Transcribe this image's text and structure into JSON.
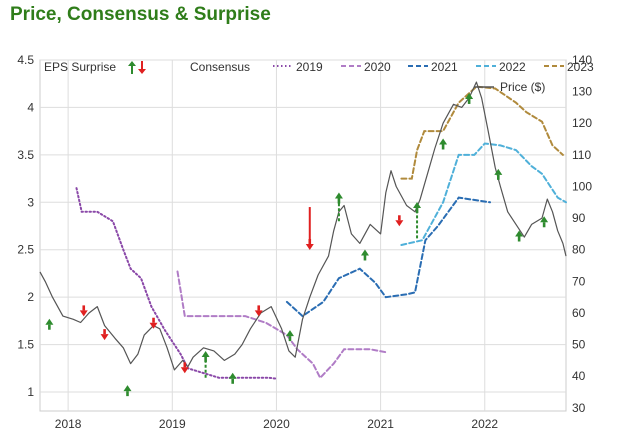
{
  "title": "Price, Consensus & Surprise",
  "chart_data": {
    "type": "line",
    "legend": {
      "surprise_label": "EPS Surprise",
      "consensus_label": "Consensus",
      "price_label": "Price ($)",
      "placement": "top"
    },
    "x_ticks": [
      "2018",
      "2019",
      "2020",
      "2021",
      "2022"
    ],
    "x_range": [
      2017.73,
      2022.78
    ],
    "left_axis": {
      "ticks": [
        "1",
        "1.5",
        "2",
        "2.5",
        "3",
        "3.5",
        "4",
        "4.5"
      ],
      "range": [
        0.8,
        4.5
      ]
    },
    "right_axis": {
      "ticks": [
        "30",
        "40",
        "50",
        "60",
        "70",
        "80",
        "90",
        "100",
        "110",
        "120",
        "130",
        "140"
      ],
      "range": [
        29,
        140
      ]
    },
    "grid": true,
    "series": [
      {
        "name": "2019",
        "style": "dotted",
        "color": "#8a48a8",
        "points": [
          [
            2018.08,
            3.15
          ],
          [
            2018.13,
            2.9
          ],
          [
            2018.28,
            2.9
          ],
          [
            2018.43,
            2.8
          ],
          [
            2018.53,
            2.5
          ],
          [
            2018.6,
            2.3
          ],
          [
            2018.7,
            2.2
          ],
          [
            2018.8,
            1.9
          ],
          [
            2018.93,
            1.65
          ],
          [
            2019.08,
            1.4
          ],
          [
            2019.15,
            1.25
          ],
          [
            2019.3,
            1.2
          ],
          [
            2019.45,
            1.15
          ],
          [
            2019.6,
            1.15
          ],
          [
            2019.75,
            1.15
          ],
          [
            2019.93,
            1.15
          ],
          [
            2020.0,
            1.14
          ]
        ]
      },
      {
        "name": "2020",
        "style": "dashed",
        "color": "#b07cc6",
        "points": [
          [
            2019.05,
            2.27
          ],
          [
            2019.12,
            1.8
          ],
          [
            2019.7,
            1.8
          ],
          [
            2019.9,
            1.73
          ],
          [
            2020.1,
            1.6
          ],
          [
            2020.2,
            1.45
          ],
          [
            2020.35,
            1.3
          ],
          [
            2020.42,
            1.15
          ],
          [
            2020.55,
            1.3
          ],
          [
            2020.65,
            1.45
          ],
          [
            2020.9,
            1.45
          ],
          [
            2021.05,
            1.42
          ]
        ]
      },
      {
        "name": "2021",
        "style": "dashed",
        "color": "#2a6db3",
        "points": [
          [
            2020.1,
            1.95
          ],
          [
            2020.25,
            1.8
          ],
          [
            2020.45,
            1.95
          ],
          [
            2020.6,
            2.2
          ],
          [
            2020.8,
            2.3
          ],
          [
            2020.95,
            2.15
          ],
          [
            2021.05,
            2.0
          ],
          [
            2021.25,
            2.03
          ],
          [
            2021.33,
            2.05
          ],
          [
            2021.43,
            2.6
          ],
          [
            2021.55,
            2.75
          ],
          [
            2021.75,
            3.05
          ],
          [
            2022.05,
            3.0
          ]
        ]
      },
      {
        "name": "2022",
        "style": "dashed",
        "color": "#4fb0d9",
        "points": [
          [
            2021.2,
            2.55
          ],
          [
            2021.4,
            2.6
          ],
          [
            2021.5,
            2.8
          ],
          [
            2021.6,
            3.0
          ],
          [
            2021.75,
            3.5
          ],
          [
            2021.9,
            3.5
          ],
          [
            2022.0,
            3.62
          ],
          [
            2022.15,
            3.6
          ],
          [
            2022.3,
            3.55
          ],
          [
            2022.45,
            3.38
          ],
          [
            2022.55,
            3.3
          ],
          [
            2022.7,
            3.05
          ],
          [
            2022.78,
            3.0
          ]
        ]
      },
      {
        "name": "2023",
        "style": "dashed",
        "color": "#b08a3c",
        "points": [
          [
            2021.2,
            3.25
          ],
          [
            2021.3,
            3.25
          ],
          [
            2021.35,
            3.55
          ],
          [
            2021.42,
            3.75
          ],
          [
            2021.6,
            3.75
          ],
          [
            2021.75,
            4.05
          ],
          [
            2021.92,
            4.22
          ],
          [
            2022.1,
            4.2
          ],
          [
            2022.3,
            4.05
          ],
          [
            2022.4,
            3.95
          ],
          [
            2022.55,
            3.85
          ],
          [
            2022.65,
            3.6
          ],
          [
            2022.75,
            3.5
          ]
        ]
      }
    ],
    "price": {
      "color": "#555555",
      "points": [
        [
          2017.73,
          73
        ],
        [
          2017.78,
          70
        ],
        [
          2017.85,
          65
        ],
        [
          2017.95,
          59
        ],
        [
          2018.05,
          58
        ],
        [
          2018.12,
          57
        ],
        [
          2018.2,
          60
        ],
        [
          2018.28,
          62
        ],
        [
          2018.35,
          56
        ],
        [
          2018.45,
          52
        ],
        [
          2018.53,
          49
        ],
        [
          2018.6,
          44
        ],
        [
          2018.67,
          47
        ],
        [
          2018.73,
          53
        ],
        [
          2018.82,
          56
        ],
        [
          2018.88,
          55
        ],
        [
          2018.95,
          49
        ],
        [
          2019.02,
          42
        ],
        [
          2019.1,
          45
        ],
        [
          2019.15,
          43
        ],
        [
          2019.2,
          46
        ],
        [
          2019.3,
          49
        ],
        [
          2019.4,
          48
        ],
        [
          2019.5,
          45
        ],
        [
          2019.6,
          47
        ],
        [
          2019.67,
          50
        ],
        [
          2019.75,
          55
        ],
        [
          2019.85,
          60
        ],
        [
          2019.95,
          62
        ],
        [
          2020.05,
          55
        ],
        [
          2020.12,
          48
        ],
        [
          2020.18,
          46
        ],
        [
          2020.25,
          58
        ],
        [
          2020.32,
          65
        ],
        [
          2020.4,
          72
        ],
        [
          2020.5,
          78
        ],
        [
          2020.55,
          86
        ],
        [
          2020.6,
          92
        ],
        [
          2020.65,
          94
        ],
        [
          2020.72,
          85
        ],
        [
          2020.8,
          82
        ],
        [
          2020.9,
          88
        ],
        [
          2021.0,
          85
        ],
        [
          2021.05,
          98
        ],
        [
          2021.1,
          105
        ],
        [
          2021.15,
          100
        ],
        [
          2021.25,
          94
        ],
        [
          2021.33,
          92
        ],
        [
          2021.38,
          96
        ],
        [
          2021.45,
          104
        ],
        [
          2021.52,
          112
        ],
        [
          2021.6,
          120
        ],
        [
          2021.7,
          126
        ],
        [
          2021.78,
          125
        ],
        [
          2021.85,
          128
        ],
        [
          2021.92,
          133
        ],
        [
          2021.97,
          128
        ],
        [
          2022.03,
          118
        ],
        [
          2022.1,
          106
        ],
        [
          2022.15,
          100
        ],
        [
          2022.22,
          92
        ],
        [
          2022.3,
          88
        ],
        [
          2022.38,
          84
        ],
        [
          2022.45,
          88
        ],
        [
          2022.55,
          90
        ],
        [
          2022.6,
          96
        ],
        [
          2022.65,
          92
        ],
        [
          2022.7,
          86
        ],
        [
          2022.75,
          82
        ],
        [
          2022.78,
          78
        ]
      ]
    },
    "surprises": [
      {
        "x": 2017.82,
        "y": 1.72,
        "dir": "up"
      },
      {
        "x": 2018.15,
        "y": 1.85,
        "dir": "down"
      },
      {
        "x": 2018.35,
        "y": 1.6,
        "dir": "down"
      },
      {
        "x": 2018.57,
        "y": 1.02,
        "dir": "up"
      },
      {
        "x": 2018.82,
        "y": 1.72,
        "dir": "down"
      },
      {
        "x": 2019.12,
        "y": 1.25,
        "dir": "down"
      },
      {
        "x": 2019.32,
        "y": 1.38,
        "dir": "up",
        "from": 1.15
      },
      {
        "x": 2019.58,
        "y": 1.15,
        "dir": "up"
      },
      {
        "x": 2019.83,
        "y": 1.85,
        "dir": "down"
      },
      {
        "x": 2020.13,
        "y": 1.6,
        "dir": "up"
      },
      {
        "x": 2020.32,
        "y": 2.55,
        "dir": "down",
        "from": 2.95
      },
      {
        "x": 2020.6,
        "y": 3.05,
        "dir": "up",
        "from": 2.8
      },
      {
        "x": 2020.85,
        "y": 2.45,
        "dir": "up"
      },
      {
        "x": 2021.18,
        "y": 2.8,
        "dir": "down"
      },
      {
        "x": 2021.35,
        "y": 2.95,
        "dir": "up",
        "from": 2.62
      },
      {
        "x": 2021.6,
        "y": 3.62,
        "dir": "up"
      },
      {
        "x": 2021.85,
        "y": 4.1,
        "dir": "up"
      },
      {
        "x": 2022.13,
        "y": 3.3,
        "dir": "up"
      },
      {
        "x": 2022.33,
        "y": 2.65,
        "dir": "up"
      },
      {
        "x": 2022.57,
        "y": 2.8,
        "dir": "up"
      }
    ]
  }
}
